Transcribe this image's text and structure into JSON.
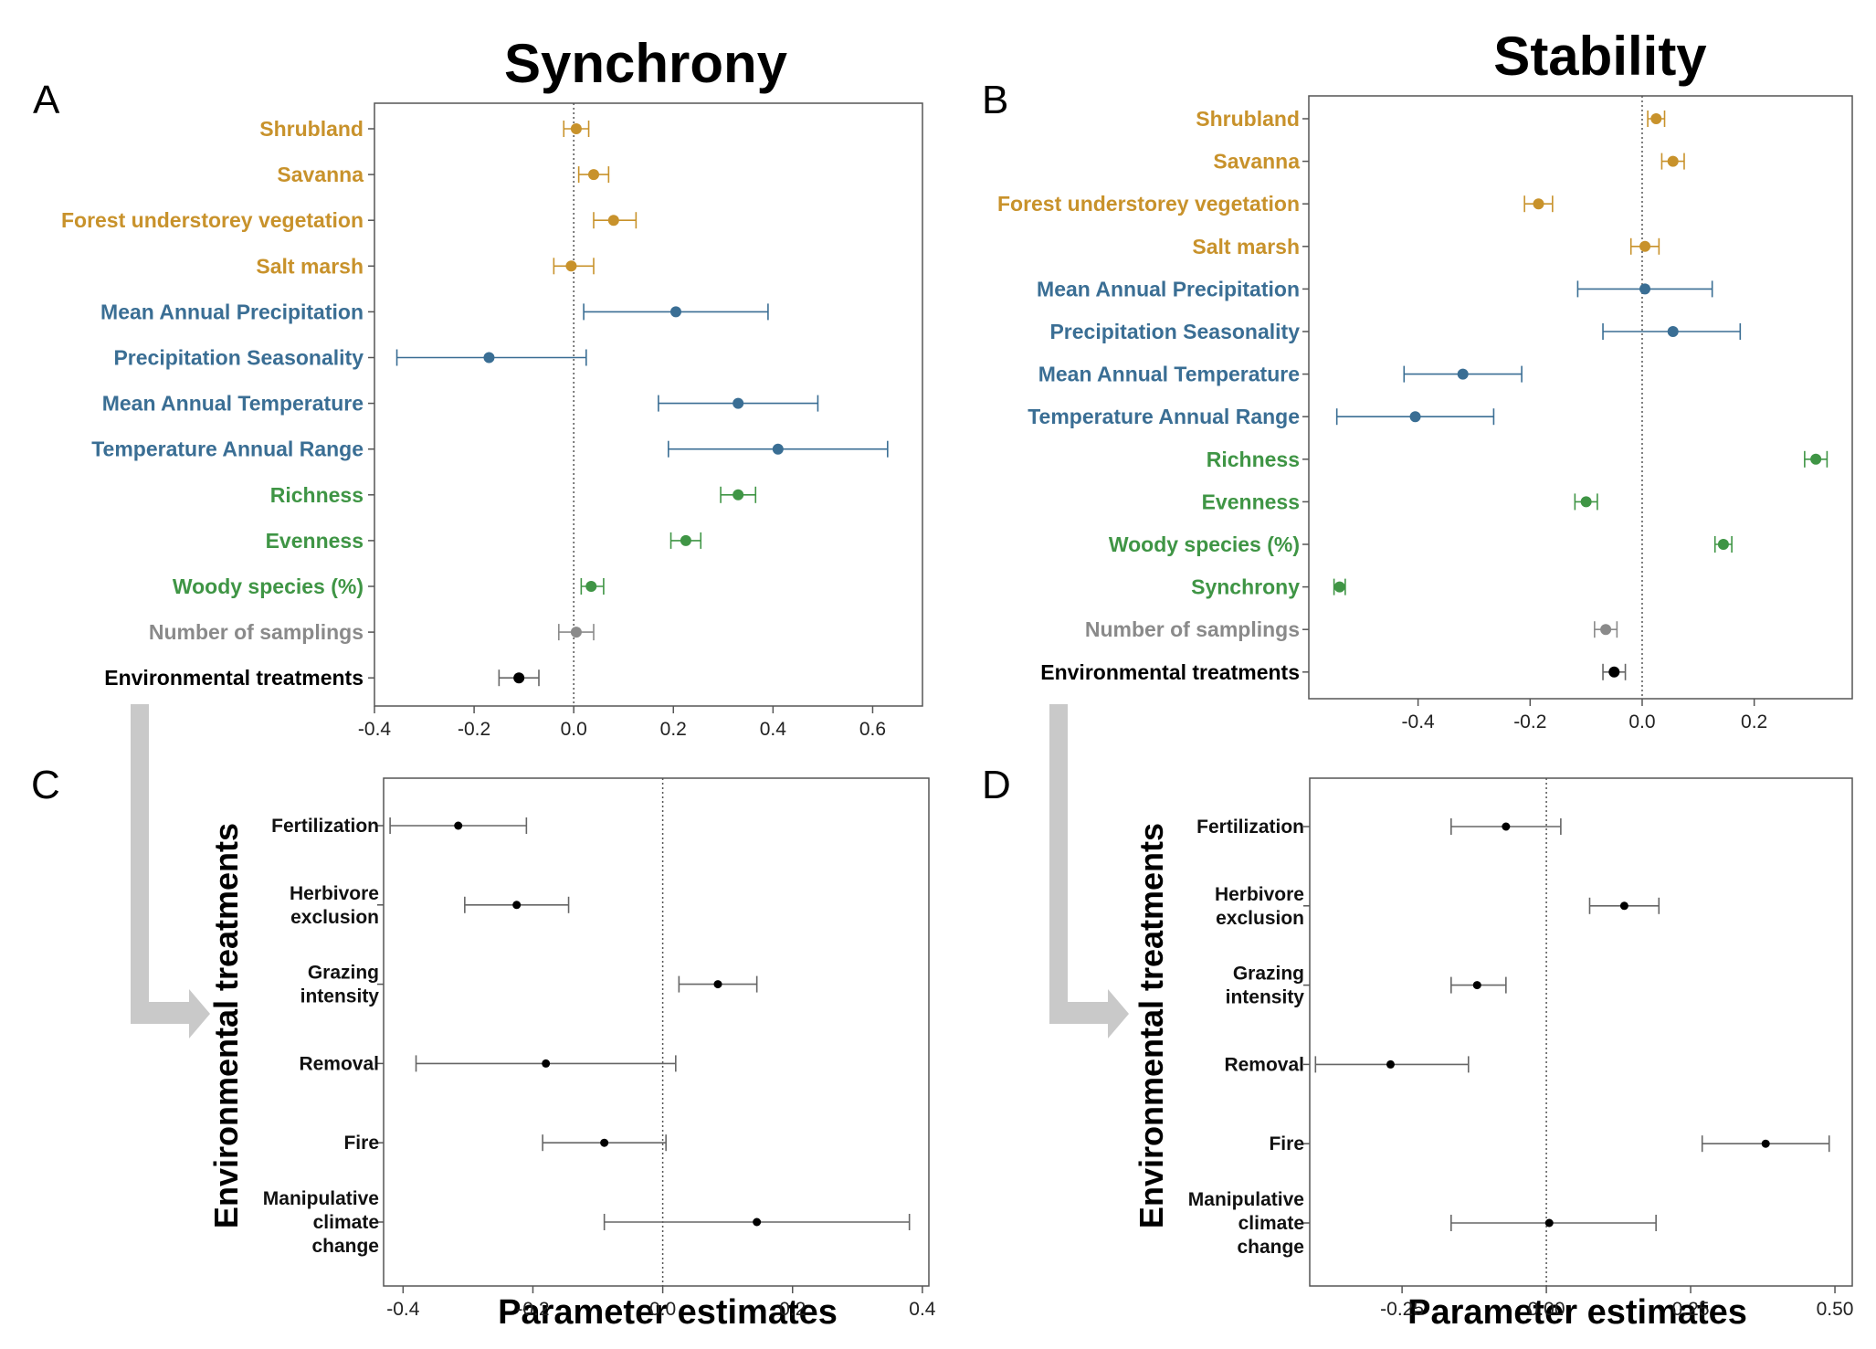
{
  "colors": {
    "habitat": "#c8922b",
    "climate": "#3a6e94",
    "diversity": "#3f9545",
    "sampling": "#8a8a8a",
    "treatment": "#000000",
    "errorbar_black": "#666666"
  },
  "titles": {
    "synchrony": "Synchrony",
    "stability": "Stability"
  },
  "letters": {
    "a": "A",
    "b": "B",
    "c": "C",
    "d": "D"
  },
  "axis_titles": {
    "c": "Parameter estimates",
    "d": "Parameter estimates",
    "y_treatments_c": "Environmental treatments",
    "y_treatments_d": "Environmental treatments"
  },
  "chart_data": [
    {
      "id": "A",
      "type": "scatter",
      "title": "Synchrony",
      "xlim": [
        -0.4,
        0.7
      ],
      "xticks": [
        "-0.4",
        "-0.2",
        "0.0",
        "0.2",
        "0.4",
        "0.6"
      ],
      "xtick_values": [
        -0.4,
        -0.2,
        0.0,
        0.2,
        0.4,
        0.6
      ],
      "reference_line": 0,
      "rows": [
        {
          "label": "Shrubland",
          "group": "habitat",
          "estimate": 0.005,
          "lo": -0.02,
          "hi": 0.03
        },
        {
          "label": "Savanna",
          "group": "habitat",
          "estimate": 0.04,
          "lo": 0.01,
          "hi": 0.07
        },
        {
          "label": "Forest understorey vegetation",
          "group": "habitat",
          "estimate": 0.08,
          "lo": 0.04,
          "hi": 0.125
        },
        {
          "label": "Salt marsh",
          "group": "habitat",
          "estimate": -0.005,
          "lo": -0.04,
          "hi": 0.04
        },
        {
          "label": "Mean Annual Precipitation",
          "group": "climate",
          "estimate": 0.205,
          "lo": 0.02,
          "hi": 0.39
        },
        {
          "label": "Precipitation Seasonality",
          "group": "climate",
          "estimate": -0.17,
          "lo": -0.355,
          "hi": 0.025
        },
        {
          "label": "Mean Annual Temperature",
          "group": "climate",
          "estimate": 0.33,
          "lo": 0.17,
          "hi": 0.49
        },
        {
          "label": "Temperature Annual Range",
          "group": "climate",
          "estimate": 0.41,
          "lo": 0.19,
          "hi": 0.63
        },
        {
          "label": "Richness",
          "group": "diversity",
          "estimate": 0.33,
          "lo": 0.295,
          "hi": 0.365
        },
        {
          "label": "Evenness",
          "group": "diversity",
          "estimate": 0.225,
          "lo": 0.195,
          "hi": 0.255
        },
        {
          "label": "Woody species (%)",
          "group": "diversity",
          "estimate": 0.035,
          "lo": 0.015,
          "hi": 0.06
        },
        {
          "label": "Number of samplings",
          "group": "sampling",
          "estimate": 0.005,
          "lo": -0.03,
          "hi": 0.04
        },
        {
          "label": "Environmental treatments",
          "group": "treatment",
          "estimate": -0.11,
          "lo": -0.15,
          "hi": -0.07
        }
      ]
    },
    {
      "id": "B",
      "type": "scatter",
      "title": "Stability",
      "xlim": [
        -0.595,
        0.375
      ],
      "xticks": [
        "-0.4",
        "-0.2",
        "0.0",
        "0.2"
      ],
      "xtick_values": [
        -0.4,
        -0.2,
        0.0,
        0.2
      ],
      "reference_line": 0,
      "rows": [
        {
          "label": "Shrubland",
          "group": "habitat",
          "estimate": 0.025,
          "lo": 0.01,
          "hi": 0.04
        },
        {
          "label": "Savanna",
          "group": "habitat",
          "estimate": 0.055,
          "lo": 0.035,
          "hi": 0.075
        },
        {
          "label": "Forest understorey vegetation",
          "group": "habitat",
          "estimate": -0.185,
          "lo": -0.21,
          "hi": -0.16
        },
        {
          "label": "Salt marsh",
          "group": "habitat",
          "estimate": 0.005,
          "lo": -0.02,
          "hi": 0.03
        },
        {
          "label": "Mean Annual Precipitation",
          "group": "climate",
          "estimate": 0.005,
          "lo": -0.115,
          "hi": 0.125
        },
        {
          "label": "Precipitation Seasonality",
          "group": "climate",
          "estimate": 0.055,
          "lo": -0.07,
          "hi": 0.175
        },
        {
          "label": "Mean Annual Temperature",
          "group": "climate",
          "estimate": -0.32,
          "lo": -0.425,
          "hi": -0.215
        },
        {
          "label": "Temperature Annual Range",
          "group": "climate",
          "estimate": -0.405,
          "lo": -0.545,
          "hi": -0.265
        },
        {
          "label": "Richness",
          "group": "diversity",
          "estimate": 0.31,
          "lo": 0.29,
          "hi": 0.33
        },
        {
          "label": "Evenness",
          "group": "diversity",
          "estimate": -0.1,
          "lo": -0.12,
          "hi": -0.08
        },
        {
          "label": "Woody species (%)",
          "group": "diversity",
          "estimate": 0.145,
          "lo": 0.13,
          "hi": 0.16
        },
        {
          "label": "Synchrony",
          "group": "diversity",
          "estimate": -0.54,
          "lo": -0.55,
          "hi": -0.53
        },
        {
          "label": "Number of samplings",
          "group": "sampling",
          "estimate": -0.065,
          "lo": -0.085,
          "hi": -0.045
        },
        {
          "label": "Environmental treatments",
          "group": "treatment",
          "estimate": -0.05,
          "lo": -0.07,
          "hi": -0.03
        }
      ]
    },
    {
      "id": "C",
      "type": "scatter",
      "xlabel": "Parameter estimates",
      "ylabel": "Environmental treatments",
      "xlim": [
        -0.43,
        0.41
      ],
      "xticks": [
        "-0.4",
        "-0.2",
        "0.0",
        "0.2",
        "0.4"
      ],
      "xtick_values": [
        -0.4,
        -0.2,
        0.0,
        0.2,
        0.4
      ],
      "reference_line": 0,
      "rows": [
        {
          "label": [
            "Fertilization"
          ],
          "estimate": -0.315,
          "lo": -0.42,
          "hi": -0.21
        },
        {
          "label": [
            "Herbivore",
            "exclusion"
          ],
          "estimate": -0.225,
          "lo": -0.305,
          "hi": -0.145
        },
        {
          "label": [
            "Grazing",
            "intensity"
          ],
          "estimate": 0.085,
          "lo": 0.025,
          "hi": 0.145
        },
        {
          "label": [
            "Removal"
          ],
          "estimate": -0.18,
          "lo": -0.38,
          "hi": 0.02
        },
        {
          "label": [
            "Fire"
          ],
          "estimate": -0.09,
          "lo": -0.185,
          "hi": 0.005
        },
        {
          "label": [
            "Manipulative",
            "climate",
            "change"
          ],
          "estimate": 0.145,
          "lo": -0.09,
          "hi": 0.38
        }
      ]
    },
    {
      "id": "D",
      "type": "scatter",
      "xlabel": "Parameter estimates",
      "ylabel": "Environmental treatments",
      "xlim": [
        -0.41,
        0.53
      ],
      "xticks": [
        "-0.25",
        "0.00",
        "0.25",
        "0.50"
      ],
      "xtick_values": [
        -0.25,
        0.0,
        0.25,
        0.5
      ],
      "reference_line": 0,
      "rows": [
        {
          "label": [
            "Fertilization"
          ],
          "estimate": -0.07,
          "lo": -0.165,
          "hi": 0.025
        },
        {
          "label": [
            "Herbivore",
            "exclusion"
          ],
          "estimate": 0.135,
          "lo": 0.075,
          "hi": 0.195
        },
        {
          "label": [
            "Grazing",
            "intensity"
          ],
          "estimate": -0.12,
          "lo": -0.165,
          "hi": -0.07
        },
        {
          "label": [
            "Removal"
          ],
          "estimate": -0.27,
          "lo": -0.4,
          "hi": -0.135
        },
        {
          "label": [
            "Fire"
          ],
          "estimate": 0.38,
          "lo": 0.27,
          "hi": 0.49
        },
        {
          "label": [
            "Manipulative",
            "climate",
            "change"
          ],
          "estimate": 0.005,
          "lo": -0.165,
          "hi": 0.19
        }
      ]
    }
  ]
}
